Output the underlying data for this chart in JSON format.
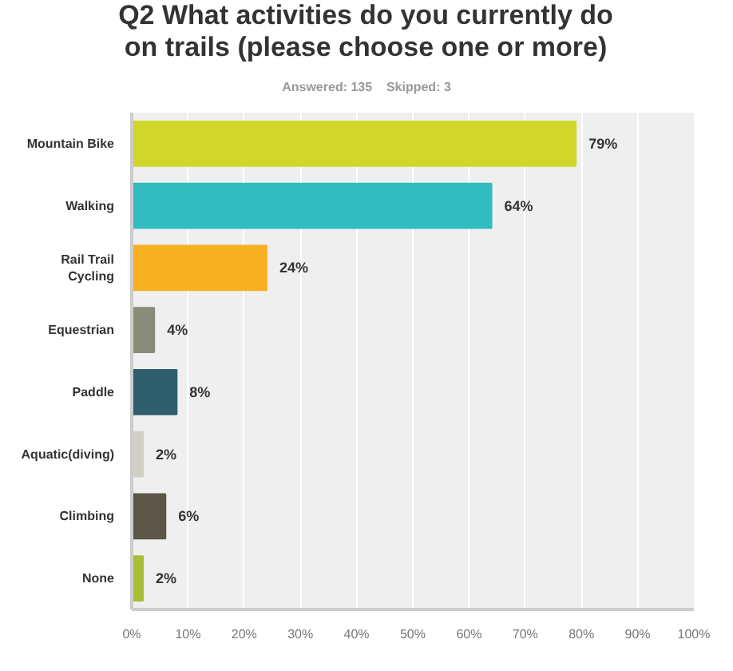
{
  "chart_data": {
    "type": "bar",
    "orientation": "horizontal",
    "title": "Q2 What activities do you currently do on trails (please choose one or more)",
    "subtitle": "Answered: 135    Skipped: 3",
    "categories": [
      "Mountain Bike",
      "Walking",
      "Rail Trail Cycling",
      "Equestrian",
      "Paddle",
      "Aquatic(diving)",
      "Climbing",
      "None"
    ],
    "values": [
      79,
      64,
      24,
      4,
      8,
      2,
      6,
      2
    ],
    "colors": [
      "#d0d62a",
      "#33bcbf",
      "#f6b020",
      "#8b8b79",
      "#2e5e6b",
      "#d2d0c2",
      "#5a5748",
      "#a7be36"
    ],
    "value_labels": [
      "79%",
      "64%",
      "24%",
      "4%",
      "8%",
      "2%",
      "6%",
      "2%"
    ],
    "xlim": [
      0,
      100
    ],
    "xticks": [
      {
        "value": 0,
        "label": "0%"
      },
      {
        "value": 10,
        "label": "10%"
      },
      {
        "value": 20,
        "label": "20%"
      },
      {
        "value": 30,
        "label": "30%"
      },
      {
        "value": 40,
        "label": "40%"
      },
      {
        "value": 50,
        "label": "50%"
      },
      {
        "value": 60,
        "label": "60%"
      },
      {
        "value": 70,
        "label": "70%"
      },
      {
        "value": 80,
        "label": "80%"
      },
      {
        "value": 90,
        "label": "90%"
      },
      {
        "value": 100,
        "label": "100%"
      }
    ],
    "grid": "x"
  }
}
